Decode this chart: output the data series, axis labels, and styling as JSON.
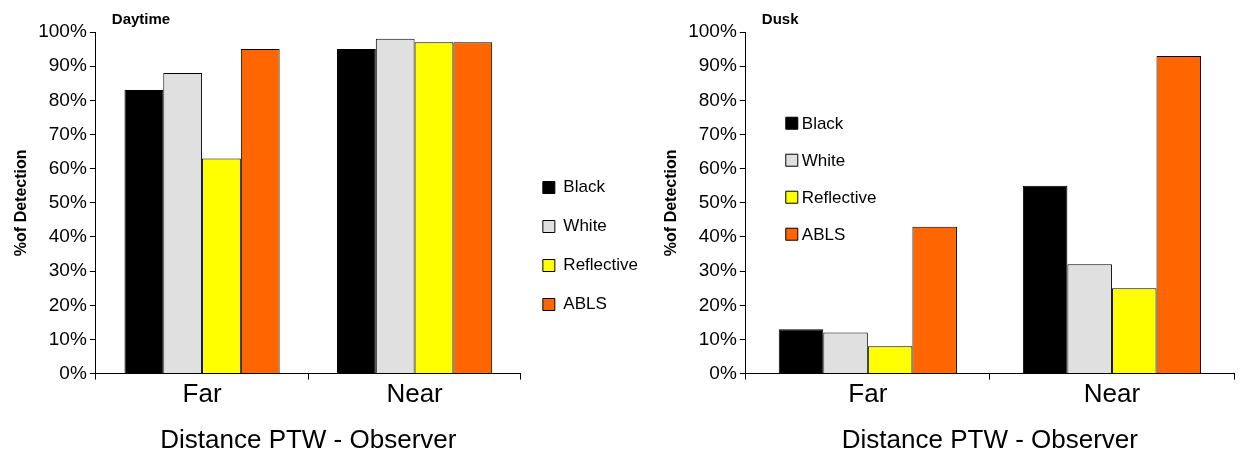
{
  "chart_data": [
    {
      "type": "bar",
      "title": "Daytime",
      "xlabel": "Distance PTW - Observer",
      "ylabel": "%of Detection",
      "categories": [
        "Far",
        "Near"
      ],
      "series": [
        {
          "name": "Black",
          "color": "#000000",
          "values": [
            83,
            95
          ]
        },
        {
          "name": "White",
          "color": "#e0e0e0",
          "values": [
            88,
            98
          ]
        },
        {
          "name": "Reflective",
          "color": "#ffff00",
          "values": [
            63,
            97
          ]
        },
        {
          "name": "ABLS",
          "color": "#ff6600",
          "values": [
            95,
            97
          ]
        }
      ],
      "ylim": [
        0,
        100
      ],
      "yticks": [
        {
          "value": 0,
          "label": "0%"
        },
        {
          "value": 10,
          "label": "10%"
        },
        {
          "value": 20,
          "label": "20%"
        },
        {
          "value": 30,
          "label": "30%"
        },
        {
          "value": 40,
          "label": "40%"
        },
        {
          "value": 50,
          "label": "50%"
        },
        {
          "value": 60,
          "label": "60%"
        },
        {
          "value": 70,
          "label": "70%"
        },
        {
          "value": 80,
          "label": "80%"
        },
        {
          "value": 90,
          "label": "90%"
        },
        {
          "value": 100,
          "label": "100%"
        }
      ],
      "grid": false,
      "legend": "right"
    },
    {
      "type": "bar",
      "title": "Dusk",
      "xlabel": "Distance PTW - Observer",
      "ylabel": "%of Detection",
      "categories": [
        "Far",
        "Near"
      ],
      "series": [
        {
          "name": "Black",
          "color": "#000000",
          "values": [
            13,
            55
          ]
        },
        {
          "name": "White",
          "color": "#e0e0e0",
          "values": [
            12,
            32
          ]
        },
        {
          "name": "Reflective",
          "color": "#ffff00",
          "values": [
            8,
            25
          ]
        },
        {
          "name": "ABLS",
          "color": "#ff6600",
          "values": [
            43,
            93
          ]
        }
      ],
      "ylim": [
        0,
        100
      ],
      "yticks": [
        {
          "value": 0,
          "label": "0%"
        },
        {
          "value": 10,
          "label": "10%"
        },
        {
          "value": 20,
          "label": "20%"
        },
        {
          "value": 30,
          "label": "30%"
        },
        {
          "value": 40,
          "label": "40%"
        },
        {
          "value": 50,
          "label": "50%"
        },
        {
          "value": 60,
          "label": "60%"
        },
        {
          "value": 70,
          "label": "70%"
        },
        {
          "value": 80,
          "label": "80%"
        },
        {
          "value": 90,
          "label": "90%"
        },
        {
          "value": 100,
          "label": "100%"
        }
      ],
      "grid": false,
      "legend": "top left"
    }
  ]
}
